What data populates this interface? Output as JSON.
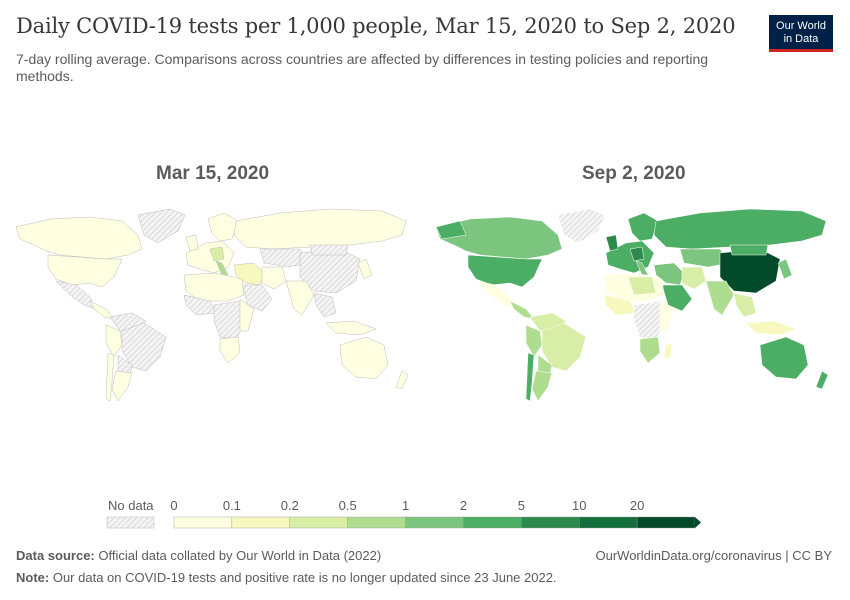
{
  "header": {
    "title": "Daily COVID-19 tests per 1,000 people, Mar 15, 2020 to Sep 2, 2020",
    "subtitle": "7-day rolling average. Comparisons across countries are affected by differences in testing policies and reporting methods.",
    "logo_line1": "Our World",
    "logo_line2": "in Data"
  },
  "maps": {
    "left_title": "Mar 15, 2020",
    "right_title": "Sep 2, 2020"
  },
  "legend": {
    "no_data_label": "No data",
    "ticks": [
      "0",
      "0.1",
      "0.2",
      "0.5",
      "1",
      "2",
      "5",
      "10",
      "20"
    ],
    "colors": [
      "#fefee0",
      "#f6f8bd",
      "#d8eda5",
      "#aedd8f",
      "#7cc57e",
      "#4cae64",
      "#2d8a4c",
      "#13703d",
      "#024a29"
    ],
    "no_data_color": "#e2e2e2"
  },
  "footer": {
    "source_label": "Data source:",
    "source_text": "Official data collated by Our World in Data (2022)",
    "link": "OurWorldinData.org/coronavirus | CC BY",
    "note_label": "Note:",
    "note_text": "Our data on COVID-19 tests and positive rate is no longer updated since 23 June 2022."
  }
}
